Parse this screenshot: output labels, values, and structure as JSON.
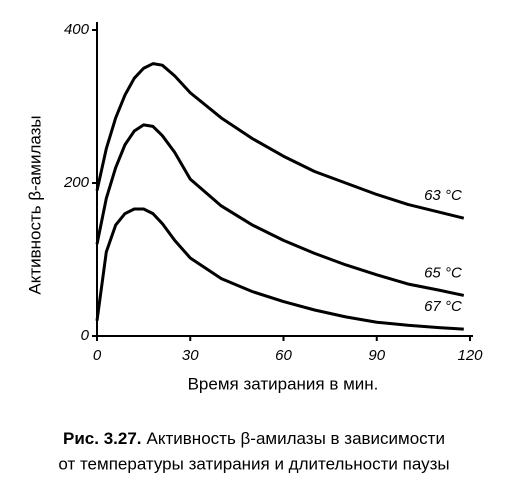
{
  "chart_data": {
    "type": "line",
    "x_label": "Время затирания в мин.",
    "y_label": "Активность β-амилазы",
    "x": [
      0,
      3,
      6,
      9,
      12,
      15,
      18,
      21,
      25,
      30,
      40,
      50,
      60,
      70,
      80,
      90,
      100,
      110,
      118
    ],
    "series": [
      {
        "name": "63 °C",
        "color": "#000000",
        "values": [
          190,
          245,
          285,
          315,
          337,
          350,
          356,
          354,
          340,
          318,
          285,
          258,
          235,
          215,
          200,
          185,
          172,
          162,
          154
        ]
      },
      {
        "name": "65 °C",
        "color": "#000000",
        "values": [
          120,
          180,
          220,
          250,
          268,
          276,
          274,
          262,
          240,
          205,
          170,
          145,
          125,
          108,
          93,
          80,
          68,
          60,
          53
        ]
      },
      {
        "name": "67 °C",
        "color": "#000000",
        "values": [
          20,
          110,
          145,
          160,
          166,
          166,
          160,
          147,
          125,
          102,
          75,
          58,
          45,
          34,
          25,
          18,
          14,
          11,
          9
        ]
      }
    ],
    "xlim": [
      0,
      120
    ],
    "xticks": [
      0,
      30,
      60,
      90,
      120
    ],
    "ylim": [
      0,
      400
    ],
    "yticks": [
      0,
      200,
      400
    ],
    "grid": false
  },
  "caption": {
    "label": "Рис. 3.27.",
    "lines": [
      "Активность β-амилазы в зависимости",
      "от температуры затирания и длительности паузы"
    ]
  }
}
